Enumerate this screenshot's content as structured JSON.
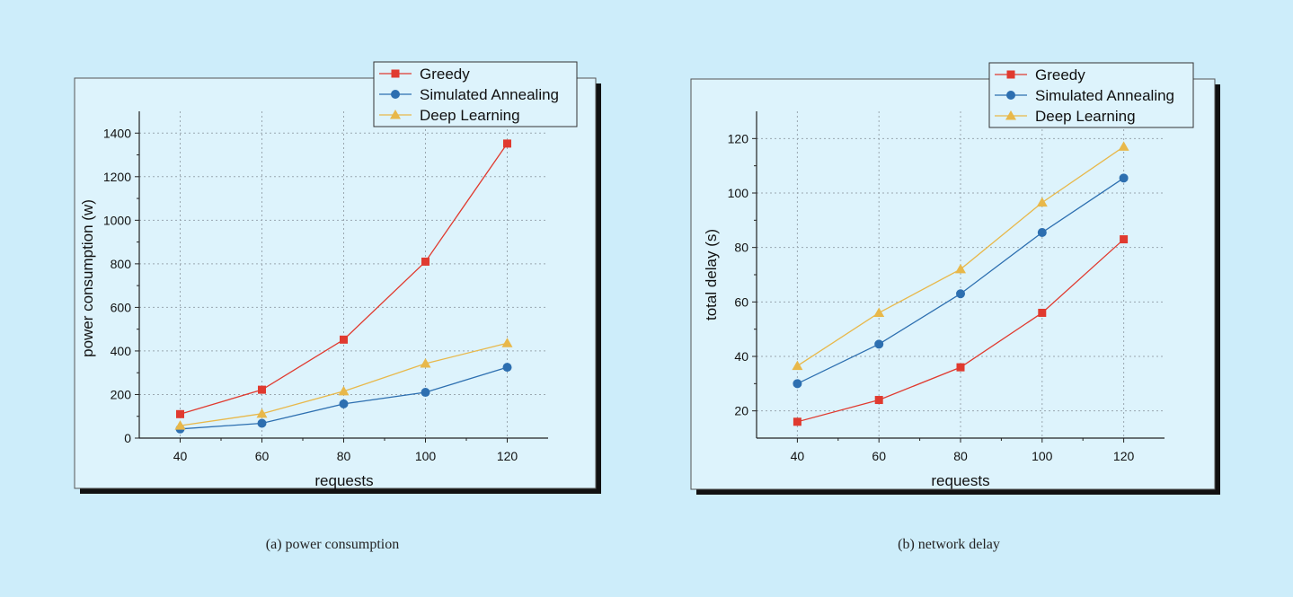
{
  "chart_data": [
    {
      "type": "line",
      "xlabel": "requests",
      "ylabel": "power consumption (w)",
      "x": [
        40,
        60,
        80,
        100,
        120
      ],
      "xticks": [
        "40",
        "60",
        "80",
        "100",
        "120"
      ],
      "xlim": [
        30,
        130
      ],
      "ylim": [
        0,
        1500
      ],
      "yticks": [
        "0",
        "200",
        "400",
        "600",
        "800",
        "1000",
        "1200",
        "1400"
      ],
      "grid": true,
      "legend_position": "top-right",
      "series": [
        {
          "name": "Greedy",
          "color": "#e03a2f",
          "marker": "square",
          "values": [
            110,
            222,
            452,
            810,
            1352
          ]
        },
        {
          "name": "Simulated Annealing",
          "color": "#2d6fb0",
          "marker": "circle",
          "values": [
            42,
            68,
            157,
            210,
            325
          ]
        },
        {
          "name": "Deep Learning",
          "color": "#e8b84a",
          "marker": "triangle",
          "values": [
            57,
            112,
            215,
            342,
            436
          ]
        }
      ],
      "caption": "(a) power consumption"
    },
    {
      "type": "line",
      "xlabel": "requests",
      "ylabel": "total delay (s)",
      "x": [
        40,
        60,
        80,
        100,
        120
      ],
      "xticks": [
        "40",
        "60",
        "80",
        "100",
        "120"
      ],
      "xlim": [
        30,
        130
      ],
      "ylim": [
        10,
        130
      ],
      "yticks": [
        "20",
        "40",
        "60",
        "80",
        "100",
        "120"
      ],
      "grid": true,
      "legend_position": "top-right",
      "series": [
        {
          "name": "Greedy",
          "color": "#e03a2f",
          "marker": "square",
          "values": [
            16,
            24,
            36,
            56,
            83
          ]
        },
        {
          "name": "Simulated Annealing",
          "color": "#2d6fb0",
          "marker": "circle",
          "values": [
            30,
            44.5,
            63,
            85.5,
            105.5
          ]
        },
        {
          "name": "Deep Learning",
          "color": "#e8b84a",
          "marker": "triangle",
          "values": [
            36.5,
            56,
            72,
            96.5,
            117
          ]
        }
      ],
      "caption": "(b) network delay"
    }
  ]
}
